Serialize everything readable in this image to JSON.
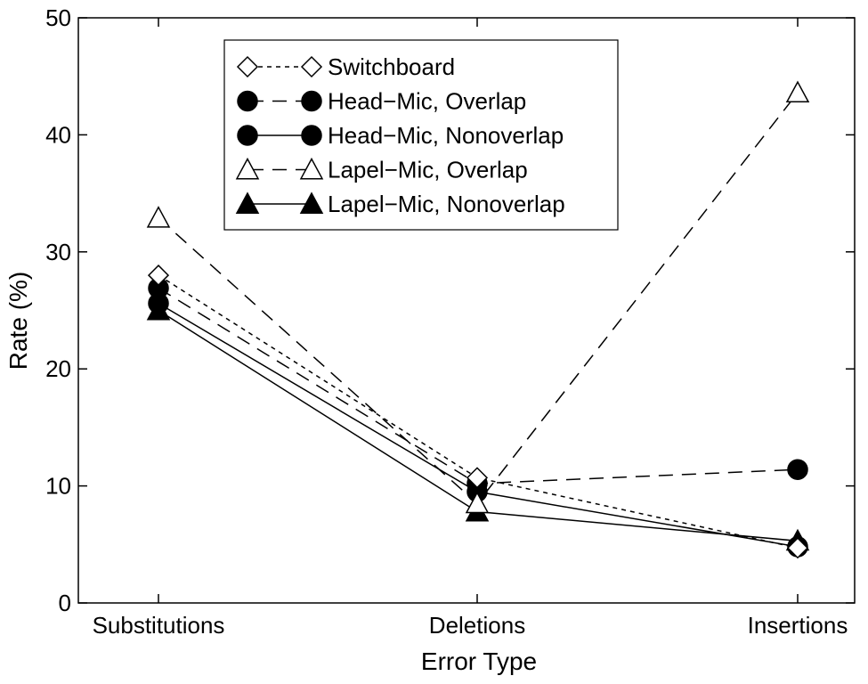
{
  "chart_data": {
    "type": "line",
    "title": "",
    "xlabel": "Error Type",
    "ylabel": "Rate  (%)",
    "categories": [
      "Substitutions",
      "Deletions",
      "Insertions"
    ],
    "ylim": [
      0,
      50
    ],
    "yticks": [
      0,
      10,
      20,
      30,
      40,
      50
    ],
    "grid": false,
    "legend_position": "top-center",
    "series": [
      {
        "name": "Switchboard",
        "values": [
          28.0,
          10.7,
          4.7
        ],
        "marker": "diamond-open",
        "line": "short-dash"
      },
      {
        "name": "Head−Mic, Overlap",
        "values": [
          26.9,
          10.2,
          11.4
        ],
        "marker": "circle-filled",
        "line": "long-dash"
      },
      {
        "name": "Head−Mic, Nonoverlap",
        "values": [
          25.6,
          9.5,
          4.8
        ],
        "marker": "circle-filled",
        "line": "solid"
      },
      {
        "name": "Lapel−Mic, Overlap",
        "values": [
          32.9,
          8.5,
          43.6
        ],
        "marker": "triangle-open",
        "line": "long-dash"
      },
      {
        "name": "Lapel−Mic, Nonoverlap",
        "values": [
          25.0,
          7.8,
          5.3
        ],
        "marker": "triangle-filled",
        "line": "solid"
      }
    ]
  }
}
